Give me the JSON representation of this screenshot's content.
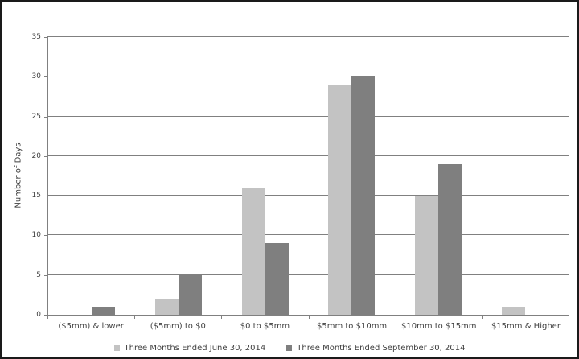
{
  "chart_data": {
    "type": "bar",
    "title": "",
    "categories": [
      "($5mm) & lower",
      "($5mm) to $0",
      "$0 to $5mm",
      "$5mm to $10mm",
      "$10mm to $15mm",
      "$15mm & Higher"
    ],
    "series": [
      {
        "name": "Three Months Ended June 30, 2014",
        "color": "#c3c3c3",
        "values": [
          0,
          2,
          16,
          29,
          15,
          1
        ]
      },
      {
        "name": "Three Months Ended September 30, 2014",
        "color": "#7f7f7f",
        "values": [
          1,
          5,
          9,
          30,
          19,
          0
        ]
      }
    ],
    "xlabel": "",
    "ylabel": "Number  of Days",
    "ylim": [
      0,
      35
    ],
    "ytick_step": 5,
    "grid": "horizontal",
    "legend_position": "bottom"
  },
  "style": {
    "gridline_color": "#808080",
    "frame_color": "#808080",
    "text_color": "#404040",
    "outer_border_color": "#1a1a1a",
    "background": "#ffffff"
  }
}
